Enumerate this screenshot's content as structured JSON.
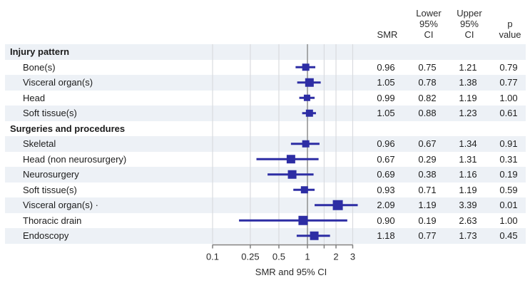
{
  "colors": {
    "marker": "#2d2da4",
    "ci_line": "#2d2da4",
    "row_shading": "#edf1f6",
    "gridline": "#d9dbdf",
    "reference_line": "#8f8f8f",
    "axis": "#7f7f7f",
    "text": "#1c1c1c"
  },
  "header": {
    "smr": "SMR",
    "lower": "Lower\n95%\nCI",
    "upper": "Upper\n95%\nCI",
    "p": "p\nvalue"
  },
  "chart_data": {
    "type": "forest",
    "title": "",
    "xlabel": "SMR and 95% CI",
    "x_scale": "log",
    "xlim": [
      0.1,
      3.5
    ],
    "x_ticks": [
      0.1,
      0.25,
      0.5,
      1,
      2,
      3
    ],
    "x_tick_labels": [
      "0.1",
      "0.25",
      "0.5",
      "1",
      "2",
      "3"
    ],
    "x_minor_ticks": [
      1.5
    ],
    "gridlines": [
      0.1,
      0.25,
      0.5,
      1.5,
      2,
      3
    ],
    "reference_line": 1,
    "rows": [
      {
        "type": "group",
        "label": "Injury pattern"
      },
      {
        "type": "item",
        "label": "Bone(s)",
        "smr": "0.96",
        "lower": "0.75",
        "upper": "1.21",
        "p": "0.79",
        "marker_size": 10
      },
      {
        "type": "item",
        "label": "Visceral organ(s)",
        "smr": "1.05",
        "lower": "0.78",
        "upper": "1.38",
        "p": "0.77",
        "marker_size": 12
      },
      {
        "type": "item",
        "label": "Head",
        "smr": "0.99",
        "lower": "0.82",
        "upper": "1.19",
        "p": "1.00",
        "marker_size": 9
      },
      {
        "type": "item",
        "label": "Soft tissue(s)",
        "smr": "1.05",
        "lower": "0.88",
        "upper": "1.23",
        "p": "0.61",
        "marker_size": 10
      },
      {
        "type": "group",
        "label": "Surgeries and procedures"
      },
      {
        "type": "item",
        "label": "Skeletal",
        "smr": "0.96",
        "lower": "0.67",
        "upper": "1.34",
        "p": "0.91",
        "marker_size": 10
      },
      {
        "type": "item",
        "label": "Head (non neurosurgery)",
        "smr": "0.67",
        "lower": "0.29",
        "upper": "1.31",
        "p": "0.31",
        "marker_size": 12
      },
      {
        "type": "item",
        "label": "Neurosurgery",
        "smr": "0.69",
        "lower": "0.38",
        "upper": "1.16",
        "p": "0.19",
        "marker_size": 12
      },
      {
        "type": "item",
        "label": "Soft tissue(s)",
        "smr": "0.93",
        "lower": "0.71",
        "upper": "1.19",
        "p": "0.59",
        "marker_size": 10
      },
      {
        "type": "item",
        "label": "Visceral organ(s) ·",
        "smr": "2.09",
        "lower": "1.19",
        "upper": "3.39",
        "p": "0.01",
        "marker_size": 14
      },
      {
        "type": "item",
        "label": "Thoracic drain",
        "smr": "0.90",
        "lower": "0.19",
        "upper": "2.63",
        "p": "1.00",
        "marker_size": 13
      },
      {
        "type": "item",
        "label": "Endoscopy",
        "smr": "1.18",
        "lower": "0.77",
        "upper": "1.73",
        "p": "0.45",
        "marker_size": 12
      }
    ]
  }
}
